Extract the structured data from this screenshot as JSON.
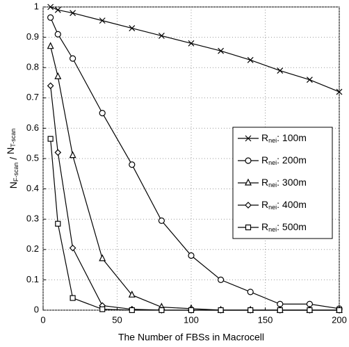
{
  "chart_data": {
    "type": "line",
    "xlabel": "The Number of FBSs in Macrocell",
    "ylabel": "NF-scan / NT-scan",
    "xlim": [
      0,
      200
    ],
    "xticks": [
      0,
      50,
      100,
      150,
      200
    ],
    "ylim": [
      0,
      1
    ],
    "yticks": [
      0,
      0.1,
      0.2,
      0.3,
      0.4,
      0.5,
      0.6,
      0.7,
      0.8,
      0.9,
      1
    ],
    "grid": true,
    "legend": "center right",
    "series": [
      {
        "name": "Rnei: 100m",
        "color": "#000000",
        "marker": "x",
        "x": [
          5,
          10,
          20,
          40,
          60,
          80,
          100,
          120,
          140,
          160,
          180,
          200
        ],
        "values": [
          1.0,
          0.99,
          0.98,
          0.955,
          0.93,
          0.905,
          0.88,
          0.855,
          0.825,
          0.79,
          0.76,
          0.72
        ]
      },
      {
        "name": "Rnei: 200m",
        "color": "#000000",
        "marker": "o",
        "x": [
          5,
          10,
          20,
          40,
          60,
          80,
          100,
          120,
          140,
          160,
          180,
          200
        ],
        "values": [
          0.965,
          0.91,
          0.83,
          0.65,
          0.48,
          0.295,
          0.18,
          0.1,
          0.06,
          0.02,
          0.02,
          0.005
        ]
      },
      {
        "name": "Rnei: 300m",
        "color": "#000000",
        "marker": "^",
        "x": [
          5,
          10,
          20,
          40,
          60,
          80,
          100,
          120,
          140,
          160,
          180,
          200
        ],
        "values": [
          0.87,
          0.77,
          0.51,
          0.17,
          0.05,
          0.01,
          0.005,
          0,
          0,
          0,
          0,
          0
        ]
      },
      {
        "name": "Rnei: 400m",
        "color": "#000000",
        "marker": "D",
        "x": [
          5,
          10,
          20,
          40,
          60,
          80,
          100,
          120,
          140,
          160,
          180,
          200
        ],
        "values": [
          0.74,
          0.52,
          0.205,
          0.015,
          0.003,
          0,
          0,
          0,
          0,
          0,
          0,
          0
        ]
      },
      {
        "name": "Rnei: 500m",
        "color": "#000000",
        "marker": "s",
        "x": [
          5,
          10,
          20,
          40,
          60,
          80,
          100,
          120,
          140,
          160,
          180,
          200
        ],
        "values": [
          0.565,
          0.285,
          0.04,
          0.003,
          0,
          0,
          0,
          0,
          0,
          0,
          0,
          0
        ]
      }
    ]
  }
}
